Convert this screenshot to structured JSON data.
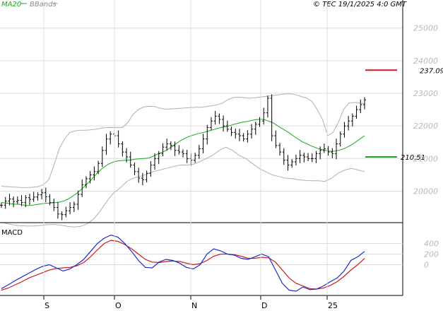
{
  "legend": {
    "ma_label": "MA20",
    "bands_label": "BBands",
    "ma_color": "#1aa81a",
    "bands_color": "#b0b0b0"
  },
  "copyright": "© TEC 19/1/2025 4:0 GMT",
  "macd_label": "MACD",
  "chart_data": [
    {
      "type": "ohlc",
      "x_ticks": [
        "S",
        "O",
        "N",
        "D",
        "25"
      ],
      "y_ticks": [
        "25000",
        "24000",
        "23000",
        "22000",
        "21000",
        "20000"
      ],
      "ylim": [
        19100,
        25600
      ],
      "grid": true,
      "legend_position": "top-left",
      "series_close": [
        19570,
        19700,
        19760,
        19680,
        19720,
        19650,
        19800,
        19750,
        19820,
        19890,
        19950,
        19830,
        19650,
        19500,
        19300,
        19280,
        19400,
        19500,
        19600,
        19900,
        20200,
        20380,
        20500,
        20600,
        20850,
        21250,
        21600,
        21750,
        21700,
        21450,
        21200,
        21050,
        20800,
        20600,
        20400,
        20350,
        20550,
        20800,
        21000,
        21150,
        21350,
        21450,
        21400,
        21250,
        21200,
        21150,
        21000,
        20950,
        21100,
        21300,
        21600,
        21950,
        22150,
        22300,
        22200,
        22000,
        21900,
        21800,
        21750,
        21700,
        21600,
        21750,
        21900,
        22050,
        22150,
        22400,
        22850,
        21700,
        21400,
        21200,
        20950,
        20800,
        20900,
        21000,
        21100,
        21050,
        21000,
        21000,
        21150,
        21250,
        21300,
        21200,
        21150,
        21450,
        21750,
        22000,
        22150,
        22300,
        22500,
        22650,
        22800
      ],
      "ma20": [
        19650,
        19640,
        19620,
        19600,
        19600,
        19580,
        19560,
        19560,
        19580,
        19600,
        19620,
        19630,
        19640,
        19650,
        19670,
        19700,
        19760,
        19840,
        19930,
        20040,
        20160,
        20280,
        20420,
        20560,
        20680,
        20780,
        20850,
        20900,
        20930,
        20940,
        20950,
        20960,
        20980,
        20990,
        21000,
        21010,
        21050,
        21110,
        21170,
        21220,
        21290,
        21380,
        21470,
        21560,
        21620,
        21680,
        21720,
        21760,
        21790,
        21820,
        21860,
        21890,
        21930,
        21960,
        21990,
        22020,
        22060,
        22090,
        22120,
        22140,
        22170,
        22190,
        22210,
        22190,
        22150,
        22100,
        22020,
        21940,
        21860,
        21780,
        21690,
        21600,
        21520,
        21460,
        21400,
        21350,
        21300,
        21270,
        21240,
        21220,
        21230,
        21260,
        21300,
        21360,
        21430,
        21520,
        21610,
        21700
      ],
      "bb_upper": [
        20150,
        20140,
        20130,
        20120,
        20110,
        20110,
        20120,
        20140,
        20200,
        20350,
        20800,
        21300,
        21600,
        21800,
        21850,
        21870,
        21870,
        21880,
        21900,
        21930,
        21950,
        21950,
        21950,
        21950,
        22100,
        22350,
        22500,
        22580,
        22600,
        22600,
        22550,
        22520,
        22520,
        22530,
        22540,
        22550,
        22560,
        22570,
        22570,
        22590,
        22620,
        22650,
        22700,
        22800,
        22870,
        22880,
        22870,
        22850,
        22860,
        22880,
        22900,
        22920,
        22940,
        22960,
        22980,
        22990,
        22950,
        22900,
        22850,
        22750,
        22500,
        22200,
        21700,
        21800,
        22100,
        22500,
        22700,
        22720,
        22700,
        22680
      ],
      "bb_lower": [
        19050,
        19000,
        18960,
        18940,
        18930,
        18930,
        18950,
        18970,
        18980,
        18960,
        18920,
        18900,
        18920,
        19000,
        19150,
        19400,
        19700,
        19950,
        20100,
        20300,
        20400,
        20450,
        20520,
        20600,
        20650,
        20700,
        20750,
        20800,
        20800,
        20820,
        20900,
        21000,
        21100,
        21250,
        21350,
        21250,
        21100,
        21000,
        20850,
        20700,
        20600,
        20500,
        20450,
        20400,
        20380,
        20350,
        20330,
        20320,
        20320,
        20300,
        20400,
        20550,
        20650,
        20700,
        20650,
        20600
      ]
    },
    {
      "type": "line",
      "title": "MACD",
      "y_ticks": [
        "400",
        "200",
        "0"
      ],
      "ylim": [
        -500,
        700
      ],
      "x_ticks": [
        "S",
        "O",
        "N",
        "D",
        "25"
      ],
      "series": [
        {
          "name": "MACD",
          "color": "#1a2bd4",
          "values": [
            -450,
            -380,
            -300,
            -230,
            -160,
            -90,
            -30,
            0,
            -60,
            -120,
            -80,
            0,
            100,
            250,
            400,
            500,
            560,
            520,
            400,
            250,
            80,
            -50,
            -60,
            50,
            100,
            80,
            30,
            -50,
            -80,
            0,
            200,
            300,
            260,
            200,
            180,
            120,
            100,
            150,
            200,
            150,
            -100,
            -350,
            -480,
            -500,
            -420,
            -470,
            -460,
            -400,
            -320,
            -250,
            -120,
            80,
            150,
            250
          ]
        },
        {
          "name": "Signal",
          "color": "#cc1a1a",
          "values": [
            -480,
            -440,
            -380,
            -320,
            -250,
            -200,
            -150,
            -100,
            -70,
            -60,
            -50,
            -20,
            40,
            150,
            280,
            400,
            460,
            440,
            380,
            300,
            200,
            100,
            50,
            40,
            60,
            70,
            60,
            30,
            0,
            20,
            80,
            160,
            200,
            200,
            190,
            160,
            120,
            120,
            140,
            130,
            50,
            -100,
            -250,
            -350,
            -400,
            -450,
            -460,
            -440,
            -390,
            -320,
            -220,
            -100,
            0,
            120
          ]
        }
      ]
    }
  ],
  "markers": [
    {
      "label": "237.09",
      "color": "#cc1a1a",
      "value": 23709
    },
    {
      "label": "210.51",
      "color": "#1aa81a",
      "value": 21051
    }
  ]
}
